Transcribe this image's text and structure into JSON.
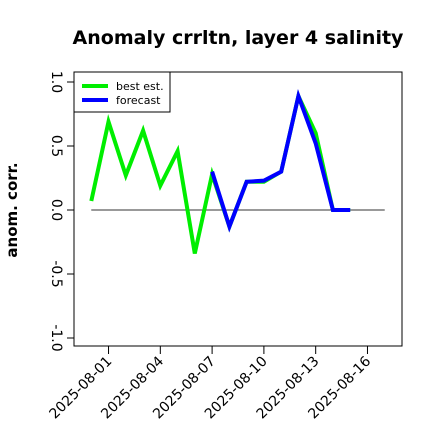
{
  "chart_data": {
    "type": "line",
    "title": "Anomaly crrltn, layer 4 salinity",
    "ylabel": "anom. corr.",
    "xlabel": "",
    "ylim": [
      -1.0,
      1.0
    ],
    "yticks": [
      -1.0,
      -0.5,
      0.0,
      0.5,
      1.0
    ],
    "ytick_labels": [
      "-1.0",
      "-0.5",
      "0.0",
      "0.5",
      "1.0"
    ],
    "xticks": [
      {
        "date": "2025-08-01",
        "label": "2025-08-01",
        "color": "#000000"
      },
      {
        "date": "2025-08-04",
        "label": "2025-08-04",
        "color": "#000000"
      },
      {
        "date": "2025-08-07",
        "label": "2025-08-07",
        "color": "#228B22"
      },
      {
        "date": "2025-08-10",
        "label": "2025-08-10",
        "color": "#000000"
      },
      {
        "date": "2025-08-13",
        "label": "2025-08-13",
        "color": "#000000"
      },
      {
        "date": "2025-08-16",
        "label": "2025-08-16",
        "color": "#000000"
      }
    ],
    "xlim": [
      "2025-07-30",
      "2025-08-18"
    ],
    "zero_line": {
      "from": "2025-07-31",
      "to": "2025-08-17",
      "y": 0.0
    },
    "legend": {
      "position": "top-left",
      "entries": [
        "best est.",
        "forecast"
      ]
    },
    "series": [
      {
        "name": "best est.",
        "color": "#00ee00",
        "x": [
          "2025-07-31",
          "2025-08-01",
          "2025-08-02",
          "2025-08-03",
          "2025-08-04",
          "2025-08-05",
          "2025-08-06",
          "2025-08-07",
          "2025-08-08",
          "2025-08-09",
          "2025-08-10",
          "2025-08-11",
          "2025-08-12",
          "2025-08-13",
          "2025-08-14",
          "2025-08-15"
        ],
        "values": [
          0.07,
          0.69,
          0.27,
          0.62,
          0.19,
          0.46,
          -0.34,
          0.28,
          -0.13,
          0.22,
          0.22,
          0.3,
          0.89,
          0.6,
          0.0,
          0.0
        ]
      },
      {
        "name": "forecast",
        "color": "#0000ff",
        "x": [
          "2025-08-07",
          "2025-08-08",
          "2025-08-09",
          "2025-08-10",
          "2025-08-11",
          "2025-08-12",
          "2025-08-13",
          "2025-08-14",
          "2025-08-15"
        ],
        "values": [
          0.3,
          -0.13,
          0.22,
          0.23,
          0.3,
          0.89,
          0.52,
          0.0,
          0.0
        ]
      }
    ]
  }
}
